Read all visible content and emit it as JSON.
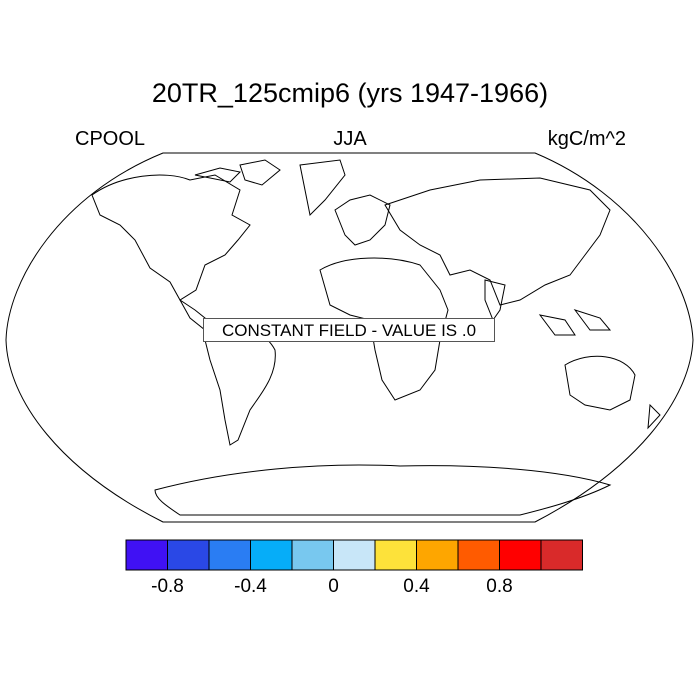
{
  "title": "20TR_125cmip6 (yrs 1947-1966)",
  "left_label": "CPOOL",
  "center_label": "JJA",
  "right_label": "kgC/m^2",
  "annotation": "CONSTANT FIELD - VALUE IS .0",
  "colorbar": {
    "colors": [
      "#4011f4",
      "#2a48e6",
      "#2a7df3",
      "#06adf8",
      "#78c8ef",
      "#c8e6f8",
      "#fde23a",
      "#fea600",
      "#ff5b00",
      "#ff0000",
      "#d92a2a"
    ],
    "tick_labels": [
      "-0.8",
      "-0.4",
      "0",
      "0.4",
      "0.8"
    ]
  }
}
